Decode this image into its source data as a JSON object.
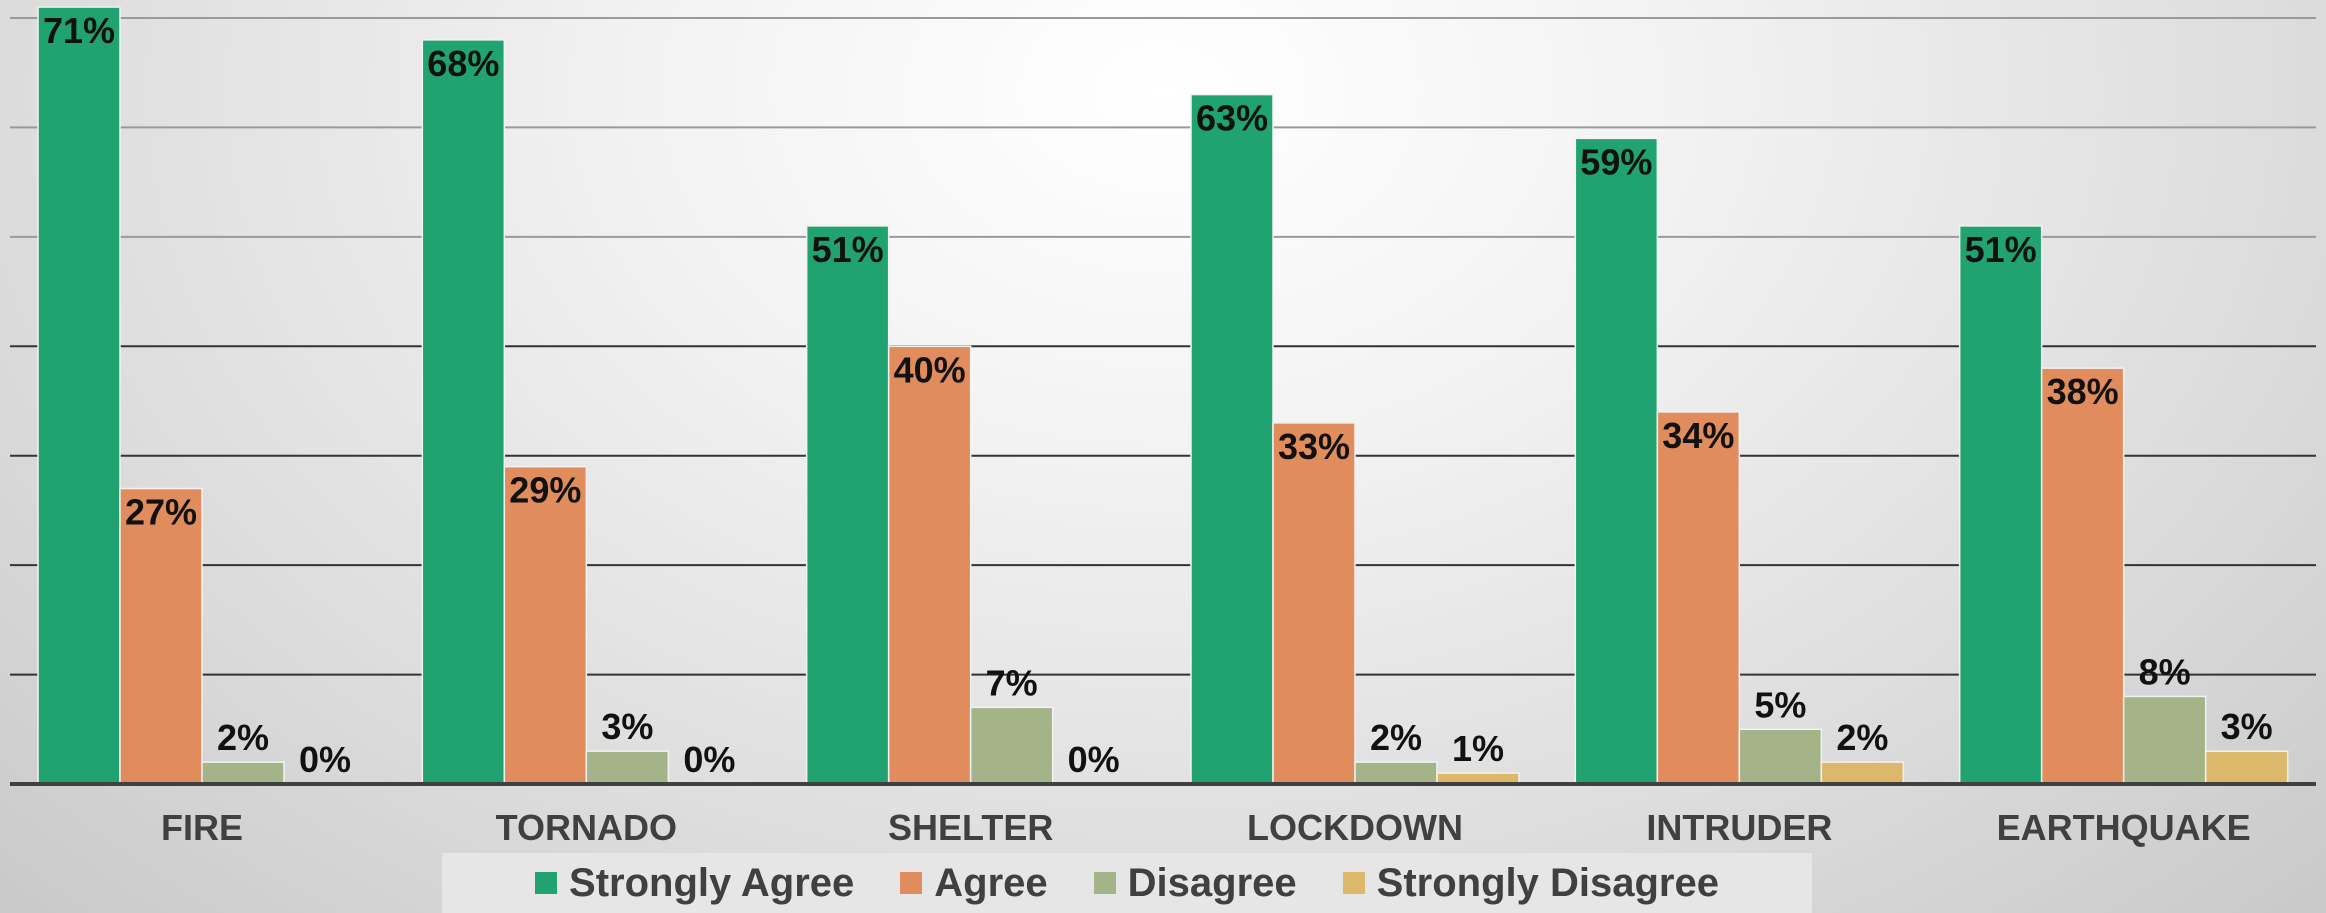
{
  "chart_data": {
    "type": "bar",
    "categories": [
      "FIRE",
      "TORNADO",
      "SHELTER",
      "LOCKDOWN",
      "INTRUDER",
      "EARTHQUAKE"
    ],
    "series": [
      {
        "name": "Strongly Agree",
        "color": "#20A271",
        "values": [
          71,
          68,
          51,
          63,
          59,
          51
        ]
      },
      {
        "name": "Agree",
        "color": "#E08C5C",
        "values": [
          27,
          29,
          40,
          33,
          34,
          38
        ]
      },
      {
        "name": "Disagree",
        "color": "#A4B388",
        "values": [
          2,
          3,
          7,
          2,
          5,
          8
        ]
      },
      {
        "name": "Strongly Disagree",
        "color": "#DDB86A",
        "values": [
          0,
          0,
          0,
          1,
          2,
          3
        ]
      }
    ],
    "data_labels": [
      [
        "71%",
        "27%",
        "2%",
        "0%"
      ],
      [
        "68%",
        "29%",
        "3%",
        "0%"
      ],
      [
        "51%",
        "40%",
        "7%",
        "0%"
      ],
      [
        "63%",
        "33%",
        "2%",
        "1%"
      ],
      [
        "59%",
        "34%",
        "5%",
        "2%"
      ],
      [
        "51%",
        "38%",
        "8%",
        "3%"
      ]
    ],
    "ylim": [
      0,
      70
    ],
    "grid": true,
    "legend_position": "bottom"
  }
}
